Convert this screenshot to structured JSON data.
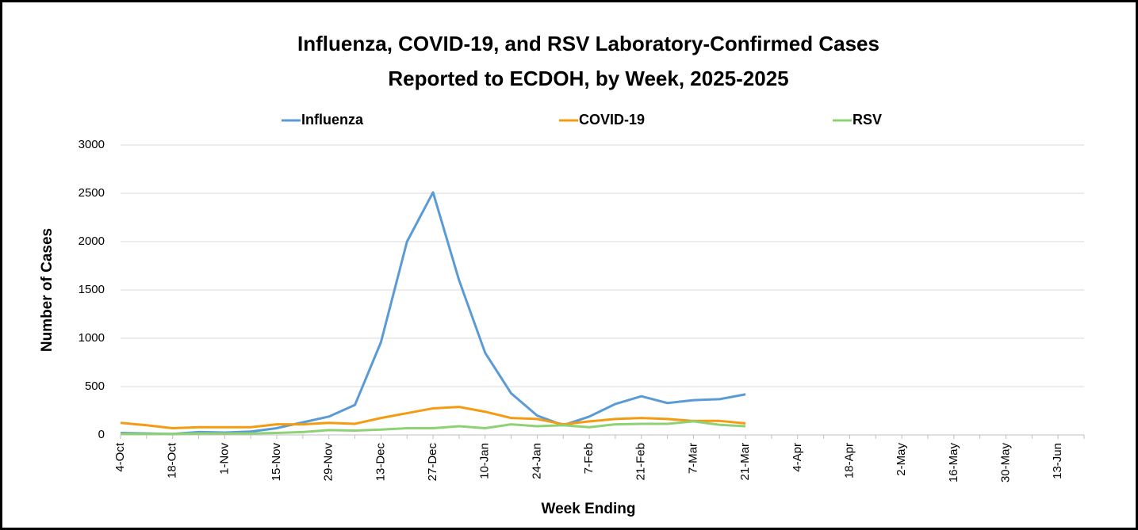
{
  "chart_data": {
    "type": "line",
    "title": [
      "Influenza, COVID-19, and RSV Laboratory-Confirmed Cases",
      "Reported to ECDOH, by Week, 2025-2025"
    ],
    "x_label": "Week Ending",
    "y_label": "Number of Cases",
    "categories": [
      "4-Oct",
      null,
      "18-Oct",
      null,
      "1-Nov",
      null,
      "15-Nov",
      null,
      "29-Nov",
      null,
      "13-Dec",
      null,
      "27-Dec",
      null,
      "10-Jan",
      null,
      "24-Jan",
      null,
      "7-Feb",
      null,
      "21-Feb",
      null,
      "7-Mar",
      null,
      "21-Mar",
      null,
      "4-Apr",
      null,
      "18-Apr",
      null,
      "2-May",
      null,
      "16-May",
      null,
      "30-May",
      null,
      "13-Jun",
      null
    ],
    "series": [
      {
        "name": "Influenza",
        "color": "#5b9bd5",
        "values": [
          20,
          15,
          10,
          30,
          25,
          35,
          70,
          130,
          190,
          310,
          960,
          2000,
          2510,
          1600,
          850,
          430,
          200,
          100,
          190,
          320,
          400,
          330,
          360,
          370,
          420,
          null,
          null,
          null,
          null,
          null,
          null,
          null,
          null,
          null,
          null,
          null,
          null,
          null
        ]
      },
      {
        "name": "COVID-19",
        "color": "#f39c12",
        "values": [
          125,
          100,
          70,
          80,
          80,
          80,
          110,
          110,
          125,
          115,
          175,
          225,
          275,
          290,
          240,
          175,
          165,
          110,
          140,
          165,
          175,
          165,
          145,
          145,
          120,
          null,
          null,
          null,
          null,
          null,
          null,
          null,
          null,
          null,
          null,
          null,
          null,
          null
        ]
      },
      {
        "name": "RSV",
        "color": "#8fd175",
        "values": [
          10,
          10,
          10,
          15,
          15,
          15,
          20,
          30,
          50,
          45,
          55,
          70,
          70,
          90,
          70,
          110,
          90,
          100,
          80,
          110,
          115,
          115,
          140,
          105,
          90,
          null,
          null,
          null,
          null,
          null,
          null,
          null,
          null,
          null,
          null,
          null,
          null,
          null
        ]
      }
    ],
    "ylim": [
      0,
      3000
    ],
    "yticks": [
      0,
      500,
      1000,
      1500,
      2000,
      2500,
      3000
    ],
    "grid": true,
    "legend": "top"
  }
}
